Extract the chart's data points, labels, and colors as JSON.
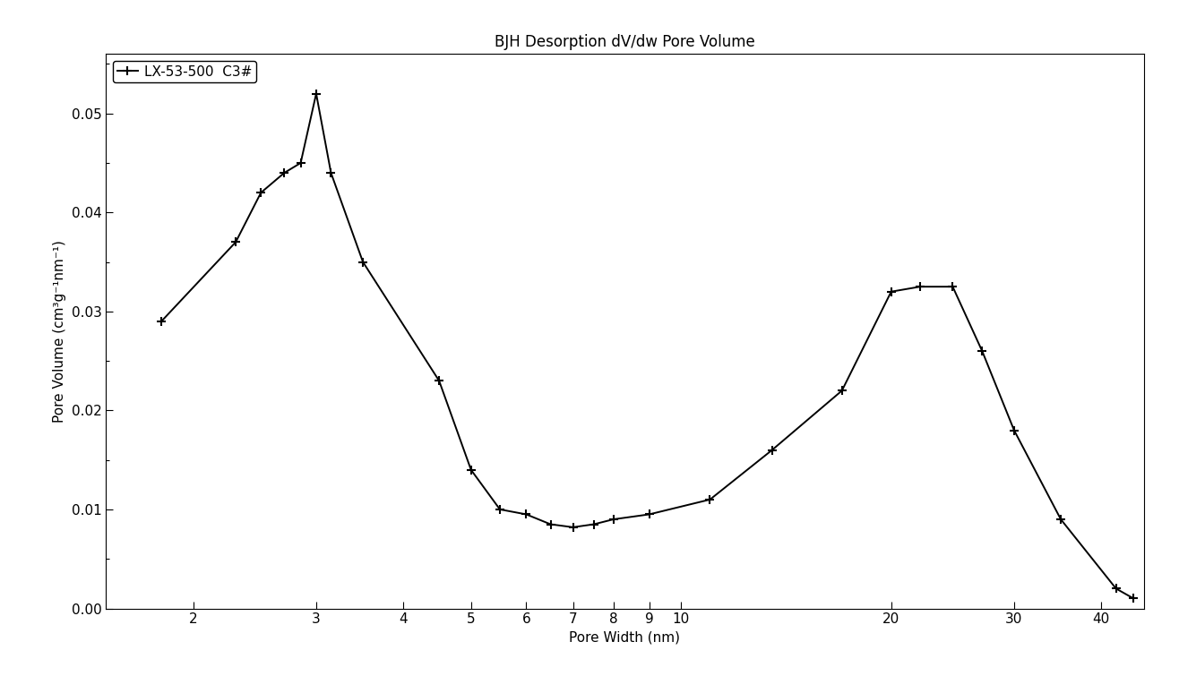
{
  "title": "BJH Desorption dV/dw Pore Volume",
  "xlabel": "Pore Width (nm)",
  "ylabel": "Pore Volume (cm³g⁻¹nm⁻¹)",
  "legend_label": "LX-53-500  C3#",
  "line_color": "#000000",
  "marker": "+",
  "markersize": 7,
  "linewidth": 1.4,
  "x_data": [
    1.8,
    2.3,
    2.5,
    2.7,
    2.85,
    3.0,
    3.15,
    3.5,
    4.5,
    5.0,
    5.5,
    6.0,
    6.5,
    7.0,
    7.5,
    8.0,
    9.0,
    11.0,
    13.5,
    17.0,
    20.0,
    22.0,
    24.5,
    27.0,
    30.0,
    35.0,
    42.0,
    44.5
  ],
  "y_data": [
    0.029,
    0.037,
    0.042,
    0.044,
    0.045,
    0.052,
    0.044,
    0.035,
    0.023,
    0.014,
    0.01,
    0.0095,
    0.0085,
    0.0082,
    0.0085,
    0.009,
    0.0095,
    0.011,
    0.016,
    0.022,
    0.032,
    0.0325,
    0.0325,
    0.026,
    0.018,
    0.009,
    0.002,
    0.001
  ],
  "xlim": [
    1.5,
    46
  ],
  "ylim": [
    0.0,
    0.056
  ],
  "xticks": [
    2,
    3,
    4,
    5,
    6,
    7,
    8,
    9,
    10,
    20,
    30,
    40
  ],
  "yticks": [
    0.0,
    0.01,
    0.02,
    0.03,
    0.04,
    0.05
  ],
  "background_color": "#ffffff",
  "title_fontsize": 12,
  "axis_fontsize": 11,
  "tick_fontsize": 11
}
